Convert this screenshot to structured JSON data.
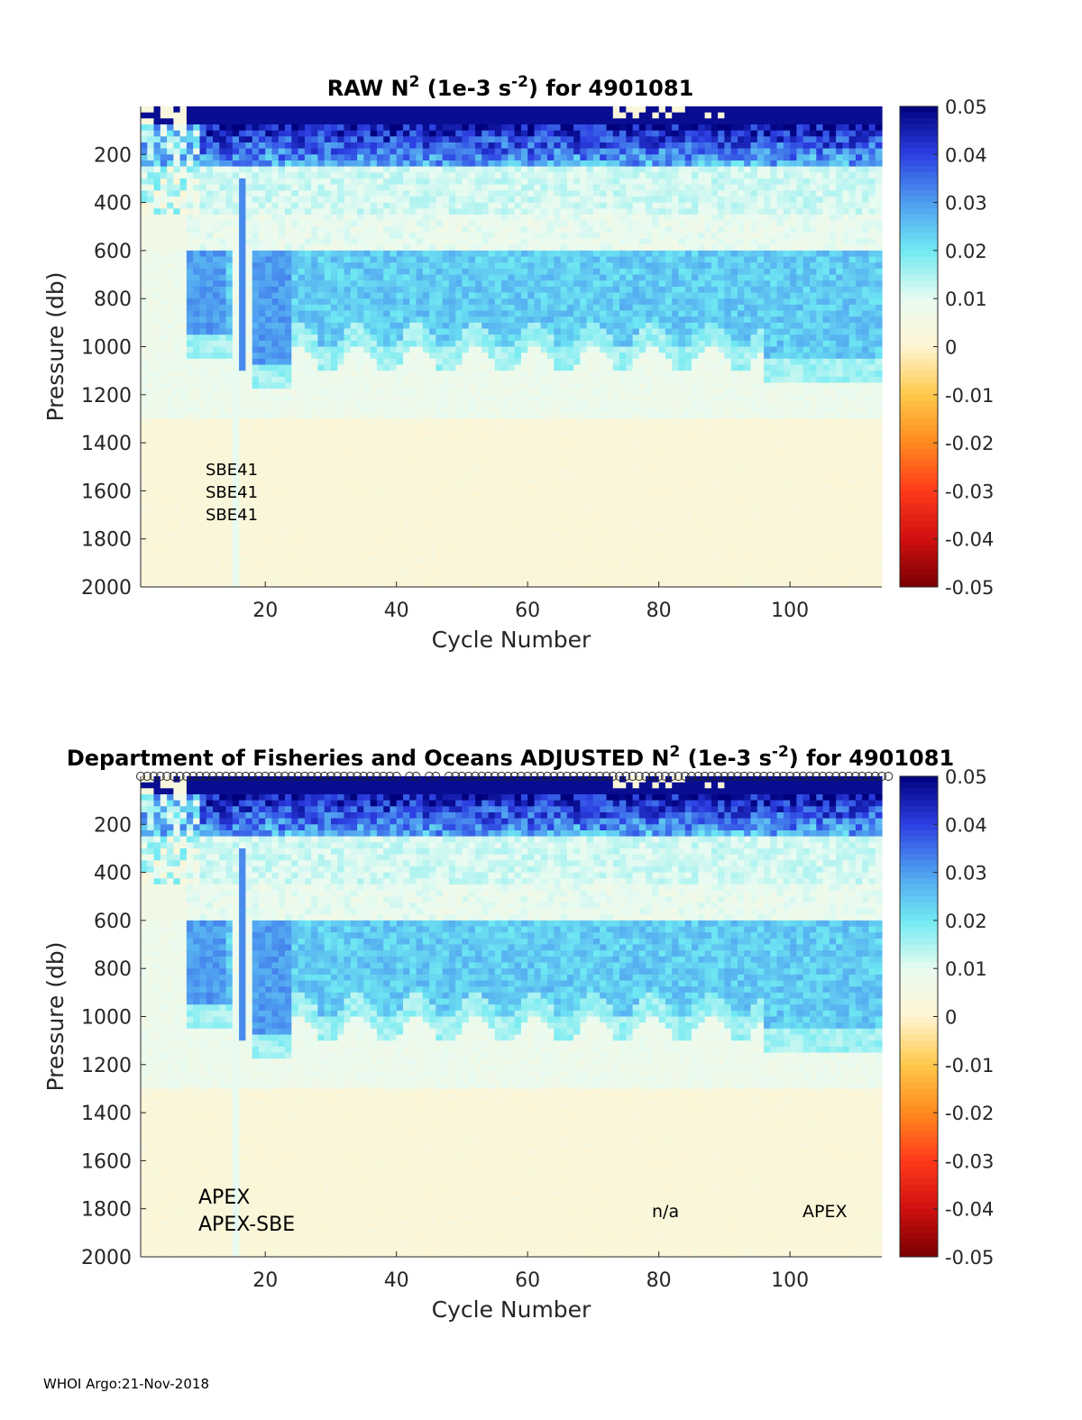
{
  "footer": "WHOI Argo:21-Nov-2018",
  "colorbar": {
    "ticks": [
      "0.05",
      "0.04",
      "0.03",
      "0.02",
      "0.01",
      "0",
      "-0.01",
      "-0.02",
      "-0.03",
      "-0.04",
      "-0.05"
    ],
    "range": [
      -0.05,
      0.05
    ],
    "colors": [
      "#7a0000",
      "#d01010",
      "#ff3a1a",
      "#ff8a1e",
      "#ffc94a",
      "#fff5d4",
      "#e8fbf1",
      "#6feaf2",
      "#4f9ef0",
      "#2c3fe2",
      "#00007d"
    ]
  },
  "chart_data": [
    {
      "type": "heatmap",
      "title_parts": [
        "RAW N",
        "2",
        " (1e-3 s",
        "-2",
        ") for 4901081"
      ],
      "xlabel": "Cycle Number",
      "ylabel": "Pressure (db)",
      "xticks": [
        "20",
        "40",
        "60",
        "80",
        "100"
      ],
      "yticks": [
        "200",
        "400",
        "600",
        "800",
        "1000",
        "1200",
        "1400",
        "1600",
        "1800",
        "2000"
      ],
      "xlim": [
        1,
        114
      ],
      "ylim": [
        0,
        2000
      ],
      "annotations": [
        "SBE41",
        "SBE41",
        "SBE41"
      ],
      "field": {
        "cycles": [
          1,
          114
        ],
        "pressure_bands_db": [
          [
            0,
            250,
            0.05
          ],
          [
            250,
            450,
            0.012
          ],
          [
            450,
            600,
            0.008
          ],
          [
            600,
            1050,
            0.024
          ],
          [
            1050,
            1250,
            0.008
          ],
          [
            1250,
            2000,
            0.002
          ]
        ]
      }
    },
    {
      "type": "heatmap",
      "title_parts": [
        "Department of Fisheries and Oceans  ADJUSTED N",
        "2",
        " (1e-3 s",
        "-2",
        ") for 4901081"
      ],
      "xlabel": "Cycle Number",
      "ylabel": "Pressure (db)",
      "xticks": [
        "20",
        "40",
        "60",
        "80",
        "100"
      ],
      "yticks": [
        "200",
        "400",
        "600",
        "800",
        "1000",
        "1200",
        "1400",
        "1600",
        "1800",
        "2000"
      ],
      "xlim": [
        1,
        114
      ],
      "ylim": [
        0,
        2000
      ],
      "annotations": [
        "APEX",
        "APEX-SBE",
        "n/a",
        "APEX"
      ],
      "markers": "circle per cycle at 0 db",
      "field": {
        "cycles": [
          1,
          114
        ],
        "pressure_bands_db": [
          [
            0,
            250,
            0.05
          ],
          [
            250,
            450,
            0.012
          ],
          [
            450,
            600,
            0.008
          ],
          [
            600,
            1050,
            0.024
          ],
          [
            1050,
            1250,
            0.008
          ],
          [
            1250,
            2000,
            0.002
          ]
        ]
      }
    }
  ]
}
